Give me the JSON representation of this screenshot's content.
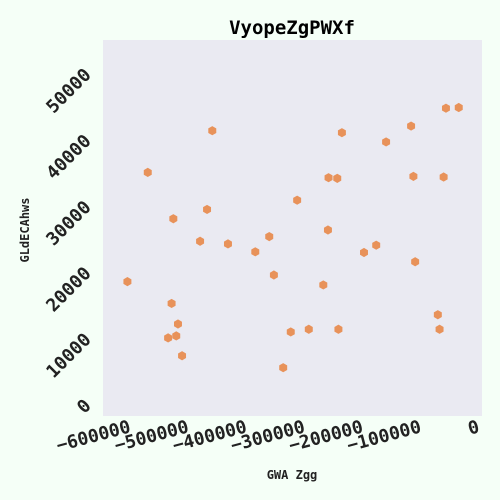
{
  "chart_data": {
    "type": "scatter",
    "title": "VyopeZgPWXf",
    "xlabel": "GWA Zgg",
    "ylabel": "GLdECAhws",
    "xlim": [
      -632000,
      20000
    ],
    "ylim": [
      -2300,
      54500
    ],
    "x_ticks": [
      -600000,
      -500000,
      -400000,
      -300000,
      -200000,
      -100000,
      0
    ],
    "x_tick_labels": [
      "−600000",
      "−500000",
      "−400000",
      "−300000",
      "−200000",
      "−100000",
      "0"
    ],
    "y_ticks": [
      0,
      10000,
      20000,
      30000,
      40000,
      50000
    ],
    "y_tick_labels": [
      "0",
      "10000",
      "20000",
      "30000",
      "40000",
      "50000"
    ],
    "grid": false,
    "colors": {
      "background": "#f5fff7",
      "plot_area": "#eaeaf2",
      "marker": "#e8925a"
    },
    "x": [
      -590000,
      -555000,
      -520000,
      -514000,
      -511000,
      -506000,
      -503000,
      -496000,
      -465000,
      -453000,
      -444000,
      -417000,
      -370000,
      -346000,
      -338000,
      -322000,
      -309000,
      -298000,
      -278000,
      -253000,
      -245000,
      -244000,
      -229000,
      -227000,
      -221000,
      -183000,
      -162000,
      -145000,
      -102000,
      -98000,
      -95000,
      -56000,
      -53000,
      -46000,
      -42000,
      -20000
    ],
    "y": [
      18000,
      34500,
      9500,
      14700,
      27500,
      9800,
      11600,
      6800,
      24100,
      28900,
      40800,
      23700,
      22500,
      24800,
      19000,
      5000,
      10400,
      30300,
      10800,
      17500,
      25800,
      33700,
      33600,
      10800,
      40500,
      22400,
      23500,
      39100,
      41500,
      33900,
      21000,
      13000,
      10800,
      33800,
      44200,
      44300
    ]
  }
}
